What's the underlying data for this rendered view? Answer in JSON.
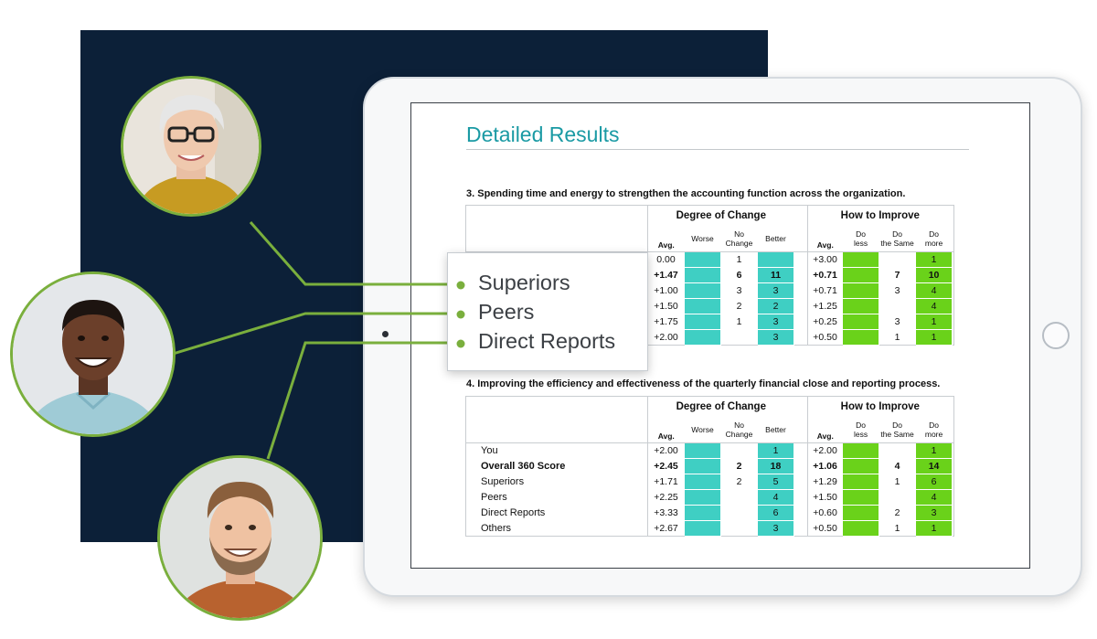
{
  "document": {
    "title": "Detailed Results",
    "questions": [
      {
        "heading": "3.   Spending time and energy to strengthen the accounting function across the organization.",
        "group_headers": {
          "change": "Degree of Change",
          "improve": "How to Improve"
        },
        "column_headers": {
          "avg": "Avg.",
          "worse": "Worse",
          "no_change": "No Change",
          "better": "Better",
          "avg2": "Avg.",
          "do_less": "Do less",
          "do_same": "Do the Same",
          "do_more": "Do more"
        },
        "rows": [
          {
            "label": "",
            "avg": "0.00",
            "no_change": "1",
            "better": "",
            "avg2": "+3.00",
            "do_same": "",
            "do_more": "1",
            "bold": false
          },
          {
            "label": "",
            "avg": "+1.47",
            "no_change": "6",
            "better": "11",
            "avg2": "+0.71",
            "do_same": "7",
            "do_more": "10",
            "bold": true
          },
          {
            "label": "",
            "avg": "+1.00",
            "no_change": "3",
            "better": "3",
            "avg2": "+0.71",
            "do_same": "3",
            "do_more": "4",
            "bold": false
          },
          {
            "label": "",
            "avg": "+1.50",
            "no_change": "2",
            "better": "2",
            "avg2": "+1.25",
            "do_same": "",
            "do_more": "4",
            "bold": false
          },
          {
            "label": "",
            "avg": "+1.75",
            "no_change": "1",
            "better": "3",
            "avg2": "+0.25",
            "do_same": "3",
            "do_more": "1",
            "bold": false
          },
          {
            "label": "",
            "avg": "+2.00",
            "no_change": "",
            "better": "3",
            "avg2": "+0.50",
            "do_same": "1",
            "do_more": "1",
            "bold": false
          }
        ]
      },
      {
        "heading": "4.   Improving the efficiency and effectiveness of the quarterly financial close and reporting process.",
        "group_headers": {
          "change": "Degree of Change",
          "improve": "How to Improve"
        },
        "column_headers": {
          "avg": "Avg.",
          "worse": "Worse",
          "no_change": "No Change",
          "better": "Better",
          "avg2": "Avg.",
          "do_less": "Do less",
          "do_same": "Do the Same",
          "do_more": "Do more"
        },
        "rows": [
          {
            "label": "You",
            "avg": "+2.00",
            "no_change": "",
            "better": "1",
            "avg2": "+2.00",
            "do_same": "",
            "do_more": "1",
            "bold": false
          },
          {
            "label": "Overall 360 Score",
            "avg": "+2.45",
            "no_change": "2",
            "better": "18",
            "avg2": "+1.06",
            "do_same": "4",
            "do_more": "14",
            "bold": true
          },
          {
            "label": "Superiors",
            "avg": "+1.71",
            "no_change": "2",
            "better": "5",
            "avg2": "+1.29",
            "do_same": "1",
            "do_more": "6",
            "bold": false
          },
          {
            "label": "Peers",
            "avg": "+2.25",
            "no_change": "",
            "better": "4",
            "avg2": "+1.50",
            "do_same": "",
            "do_more": "4",
            "bold": false
          },
          {
            "label": "Direct Reports",
            "avg": "+3.33",
            "no_change": "",
            "better": "6",
            "avg2": "+0.60",
            "do_same": "2",
            "do_more": "3",
            "bold": false
          },
          {
            "label": "Others",
            "avg": "+2.67",
            "no_change": "",
            "better": "3",
            "avg2": "+0.50",
            "do_same": "1",
            "do_more": "1",
            "bold": false
          }
        ]
      }
    ]
  },
  "callout": {
    "items": [
      "Superiors",
      "Peers",
      "Direct Reports"
    ]
  },
  "avatars": [
    {
      "icon": "woman-with-glasses-portrait"
    },
    {
      "icon": "smiling-man-portrait"
    },
    {
      "icon": "bearded-man-portrait"
    }
  ],
  "colors": {
    "navy": "#0c2038",
    "accent_green": "#7aaf3d",
    "teal_cell": "#3fcfc3",
    "green_cell": "#6ad21a",
    "title_teal": "#1a9aa4"
  }
}
